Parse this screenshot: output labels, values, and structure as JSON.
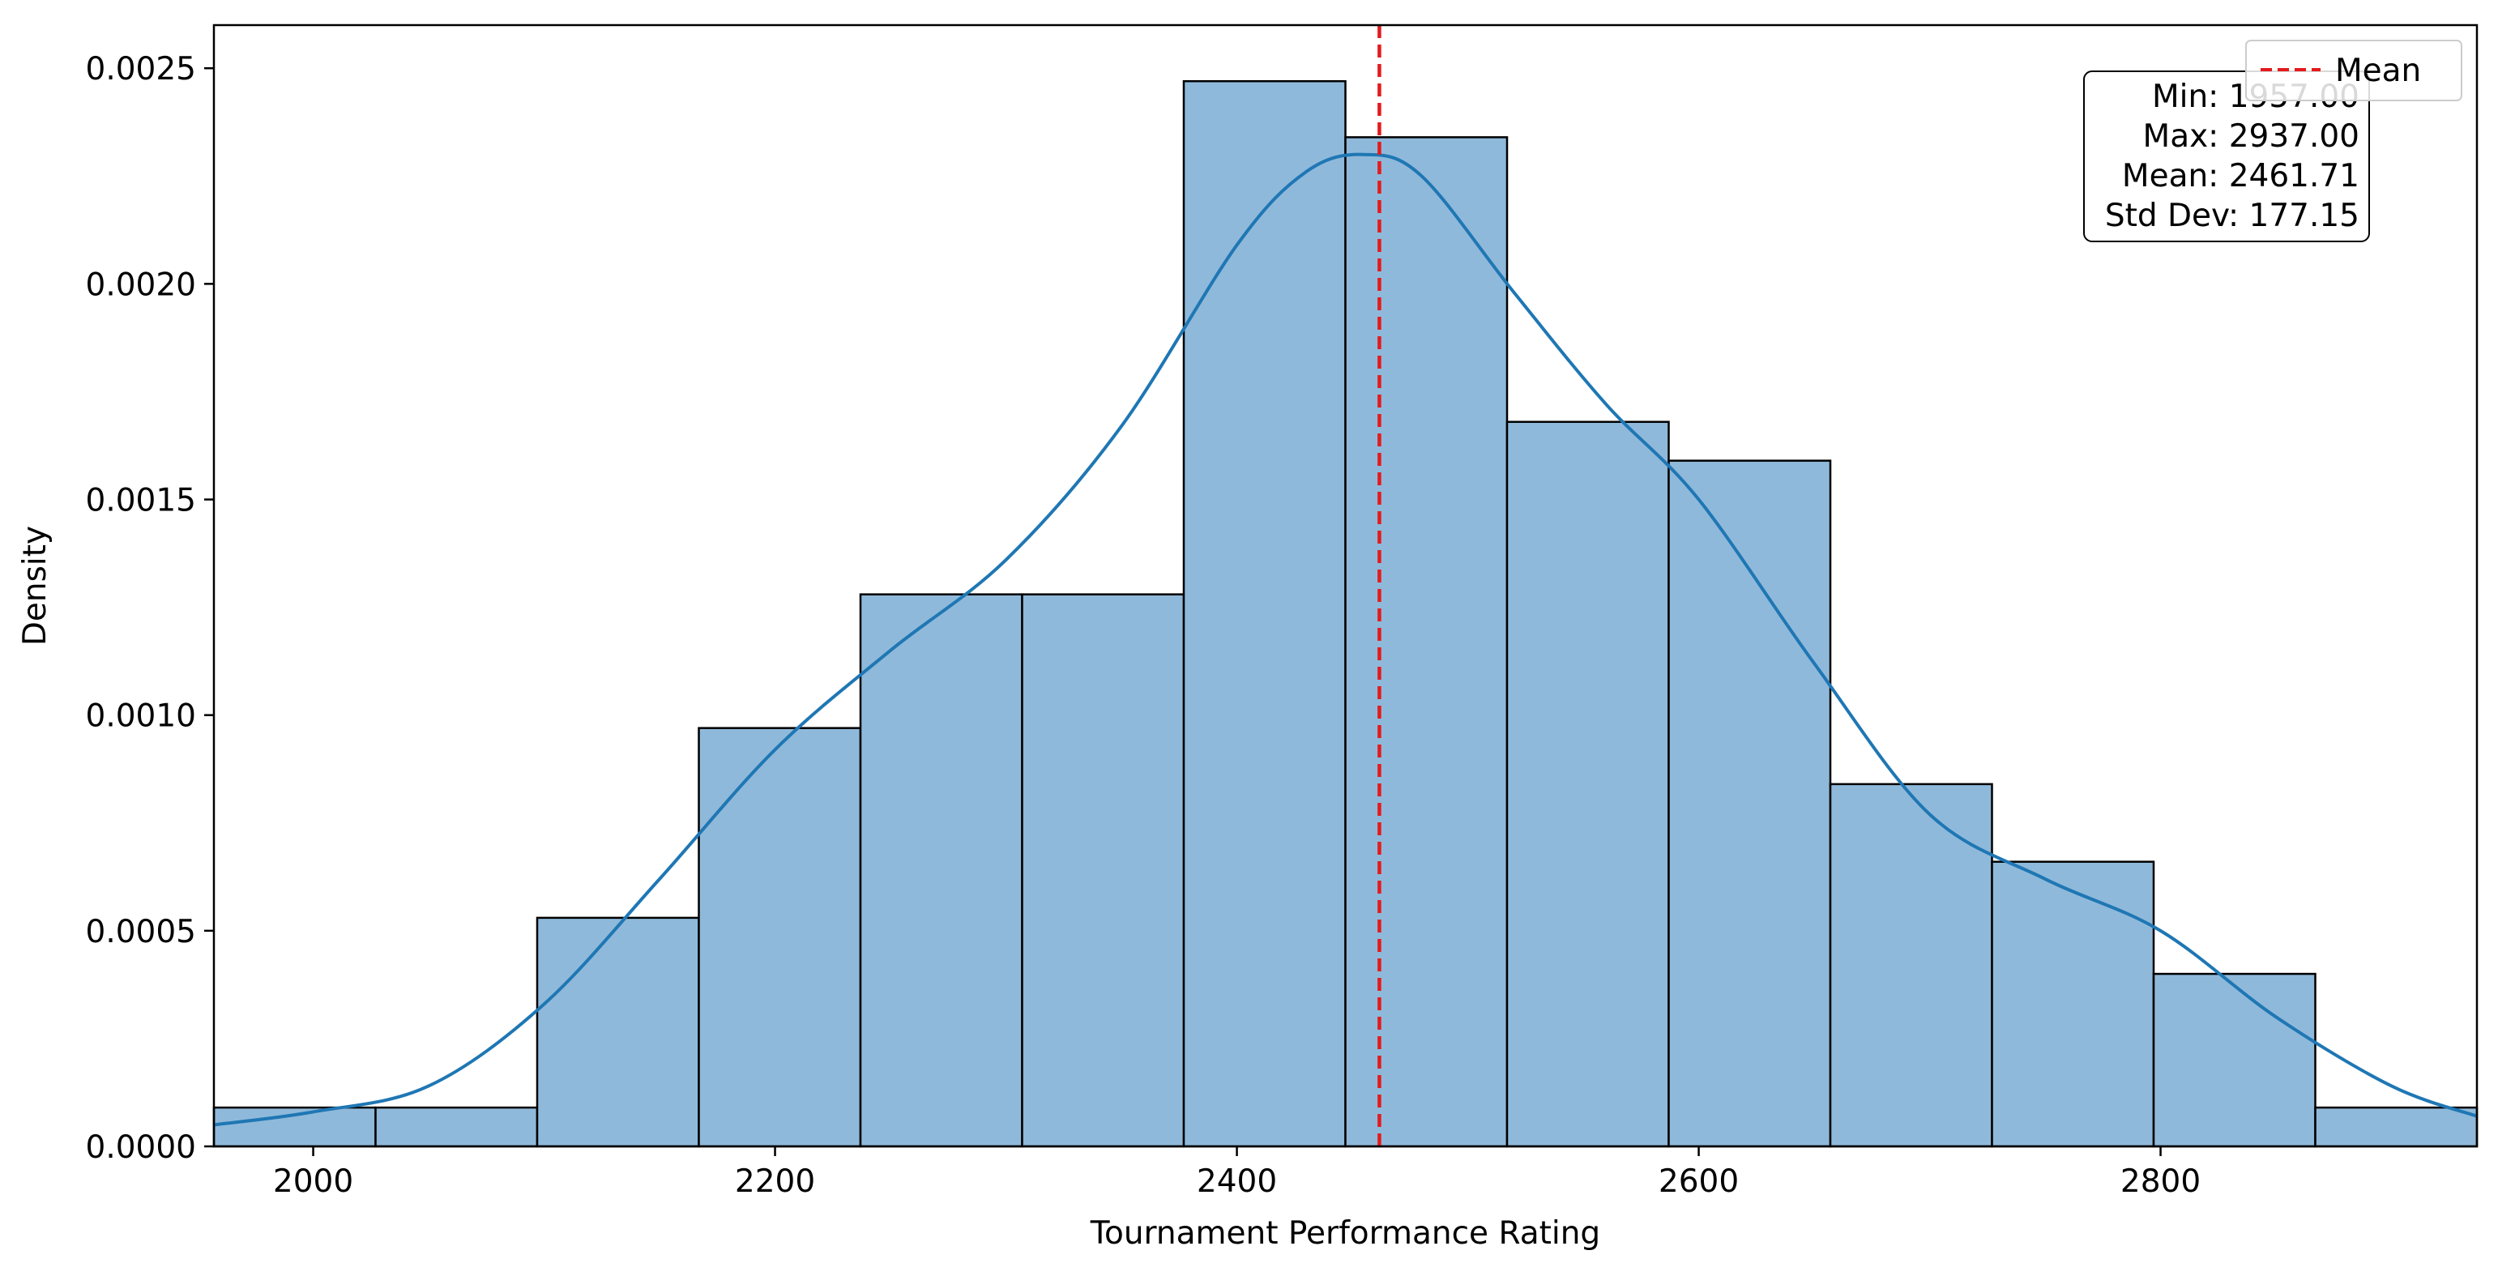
{
  "chart_data": {
    "type": "histogram",
    "xlabel": "Tournament Performance Rating",
    "ylabel": "Density",
    "xlim": [
      1957,
      2937
    ],
    "ylim": [
      0,
      0.0026
    ],
    "x_ticks": [
      2000,
      2200,
      2400,
      2600,
      2800
    ],
    "y_ticks": [
      0.0,
      0.0005,
      0.001,
      0.0015,
      0.002,
      0.0025
    ],
    "x_tick_labels": [
      "2000",
      "2200",
      "2400",
      "2600",
      "2800"
    ],
    "y_tick_labels": [
      "0.0000",
      "0.0005",
      "0.0010",
      "0.0015",
      "0.0020",
      "0.0025"
    ],
    "bins": [
      {
        "x0": 1957,
        "x1": 2027,
        "density": 9e-05
      },
      {
        "x0": 2027,
        "x1": 2097,
        "density": 9e-05
      },
      {
        "x0": 2097,
        "x1": 2167,
        "density": 0.00053
      },
      {
        "x0": 2167,
        "x1": 2237,
        "density": 0.00097
      },
      {
        "x0": 2237,
        "x1": 2307,
        "density": 0.00128
      },
      {
        "x0": 2307,
        "x1": 2377,
        "density": 0.00128
      },
      {
        "x0": 2377,
        "x1": 2447,
        "density": 0.00247
      },
      {
        "x0": 2447,
        "x1": 2517,
        "density": 0.00234
      },
      {
        "x0": 2517,
        "x1": 2587,
        "density": 0.00168
      },
      {
        "x0": 2587,
        "x1": 2657,
        "density": 0.00159
      },
      {
        "x0": 2657,
        "x1": 2727,
        "density": 0.00084
      },
      {
        "x0": 2727,
        "x1": 2797,
        "density": 0.00066
      },
      {
        "x0": 2797,
        "x1": 2867,
        "density": 0.0004
      },
      {
        "x0": 2867,
        "x1": 2937,
        "density": 9e-05
      }
    ],
    "kde": {
      "x": [
        1957,
        2000,
        2050,
        2100,
        2150,
        2200,
        2250,
        2300,
        2350,
        2400,
        2430,
        2455,
        2480,
        2520,
        2560,
        2600,
        2650,
        2700,
        2750,
        2800,
        2850,
        2900,
        2937
      ],
      "y": [
        5e-05,
        8e-05,
        0.00014,
        0.00033,
        0.00062,
        0.00092,
        0.00115,
        0.00136,
        0.00167,
        0.00209,
        0.00226,
        0.0023,
        0.00225,
        0.00198,
        0.00172,
        0.0015,
        0.00112,
        0.00077,
        0.00062,
        0.0005,
        0.0003,
        0.00014,
        7e-05
      ]
    },
    "mean_line": {
      "x": 2461.71,
      "label": "Mean",
      "color": "#e41a1c"
    },
    "stats": {
      "min": "Min: 1957.00",
      "max": "Max: 2937.00",
      "mean": "Mean: 2461.71",
      "std": "Std Dev: 177.15"
    },
    "legend": {
      "entries": [
        "Mean"
      ],
      "placement": "top-right"
    },
    "colors": {
      "bar_fill": "#8fb9da",
      "bar_edge": "#000000",
      "kde_line": "#1f77b4",
      "mean_line": "#e41a1c"
    },
    "grid": false
  }
}
